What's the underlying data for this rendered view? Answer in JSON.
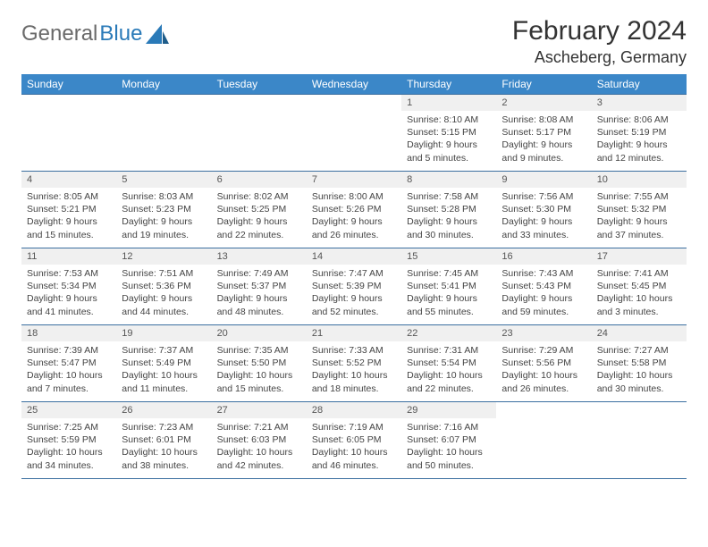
{
  "brand": {
    "part1": "General",
    "part2": "Blue"
  },
  "month_title": "February 2024",
  "location": "Ascheberg, Germany",
  "colors": {
    "header_bg": "#3b87c8",
    "header_fg": "#ffffff",
    "rule": "#3b6fa0",
    "daynum_bg": "#f0f0f0",
    "brand_gray": "#6a6a6a",
    "brand_blue": "#2a7ab8"
  },
  "weekdays": [
    "Sunday",
    "Monday",
    "Tuesday",
    "Wednesday",
    "Thursday",
    "Friday",
    "Saturday"
  ],
  "weeks": [
    [
      null,
      null,
      null,
      null,
      {
        "n": "1",
        "sr": "8:10 AM",
        "ss": "5:15 PM",
        "dl": "9 hours and 5 minutes."
      },
      {
        "n": "2",
        "sr": "8:08 AM",
        "ss": "5:17 PM",
        "dl": "9 hours and 9 minutes."
      },
      {
        "n": "3",
        "sr": "8:06 AM",
        "ss": "5:19 PM",
        "dl": "9 hours and 12 minutes."
      }
    ],
    [
      {
        "n": "4",
        "sr": "8:05 AM",
        "ss": "5:21 PM",
        "dl": "9 hours and 15 minutes."
      },
      {
        "n": "5",
        "sr": "8:03 AM",
        "ss": "5:23 PM",
        "dl": "9 hours and 19 minutes."
      },
      {
        "n": "6",
        "sr": "8:02 AM",
        "ss": "5:25 PM",
        "dl": "9 hours and 22 minutes."
      },
      {
        "n": "7",
        "sr": "8:00 AM",
        "ss": "5:26 PM",
        "dl": "9 hours and 26 minutes."
      },
      {
        "n": "8",
        "sr": "7:58 AM",
        "ss": "5:28 PM",
        "dl": "9 hours and 30 minutes."
      },
      {
        "n": "9",
        "sr": "7:56 AM",
        "ss": "5:30 PM",
        "dl": "9 hours and 33 minutes."
      },
      {
        "n": "10",
        "sr": "7:55 AM",
        "ss": "5:32 PM",
        "dl": "9 hours and 37 minutes."
      }
    ],
    [
      {
        "n": "11",
        "sr": "7:53 AM",
        "ss": "5:34 PM",
        "dl": "9 hours and 41 minutes."
      },
      {
        "n": "12",
        "sr": "7:51 AM",
        "ss": "5:36 PM",
        "dl": "9 hours and 44 minutes."
      },
      {
        "n": "13",
        "sr": "7:49 AM",
        "ss": "5:37 PM",
        "dl": "9 hours and 48 minutes."
      },
      {
        "n": "14",
        "sr": "7:47 AM",
        "ss": "5:39 PM",
        "dl": "9 hours and 52 minutes."
      },
      {
        "n": "15",
        "sr": "7:45 AM",
        "ss": "5:41 PM",
        "dl": "9 hours and 55 minutes."
      },
      {
        "n": "16",
        "sr": "7:43 AM",
        "ss": "5:43 PM",
        "dl": "9 hours and 59 minutes."
      },
      {
        "n": "17",
        "sr": "7:41 AM",
        "ss": "5:45 PM",
        "dl": "10 hours and 3 minutes."
      }
    ],
    [
      {
        "n": "18",
        "sr": "7:39 AM",
        "ss": "5:47 PM",
        "dl": "10 hours and 7 minutes."
      },
      {
        "n": "19",
        "sr": "7:37 AM",
        "ss": "5:49 PM",
        "dl": "10 hours and 11 minutes."
      },
      {
        "n": "20",
        "sr": "7:35 AM",
        "ss": "5:50 PM",
        "dl": "10 hours and 15 minutes."
      },
      {
        "n": "21",
        "sr": "7:33 AM",
        "ss": "5:52 PM",
        "dl": "10 hours and 18 minutes."
      },
      {
        "n": "22",
        "sr": "7:31 AM",
        "ss": "5:54 PM",
        "dl": "10 hours and 22 minutes."
      },
      {
        "n": "23",
        "sr": "7:29 AM",
        "ss": "5:56 PM",
        "dl": "10 hours and 26 minutes."
      },
      {
        "n": "24",
        "sr": "7:27 AM",
        "ss": "5:58 PM",
        "dl": "10 hours and 30 minutes."
      }
    ],
    [
      {
        "n": "25",
        "sr": "7:25 AM",
        "ss": "5:59 PM",
        "dl": "10 hours and 34 minutes."
      },
      {
        "n": "26",
        "sr": "7:23 AM",
        "ss": "6:01 PM",
        "dl": "10 hours and 38 minutes."
      },
      {
        "n": "27",
        "sr": "7:21 AM",
        "ss": "6:03 PM",
        "dl": "10 hours and 42 minutes."
      },
      {
        "n": "28",
        "sr": "7:19 AM",
        "ss": "6:05 PM",
        "dl": "10 hours and 46 minutes."
      },
      {
        "n": "29",
        "sr": "7:16 AM",
        "ss": "6:07 PM",
        "dl": "10 hours and 50 minutes."
      },
      null,
      null
    ]
  ],
  "labels": {
    "sunrise": "Sunrise: ",
    "sunset": "Sunset: ",
    "daylight": "Daylight: "
  }
}
